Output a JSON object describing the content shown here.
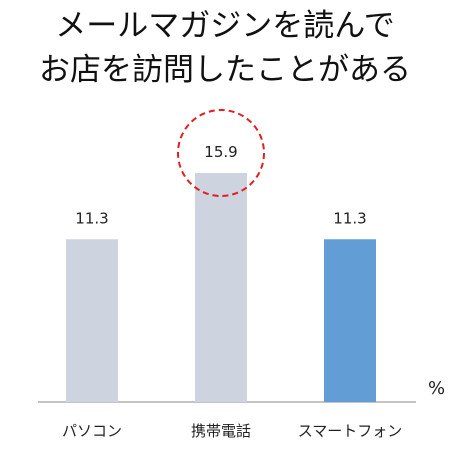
{
  "title_lines": [
    "メールマガジンを読んで",
    "お店を訪問したことがある"
  ],
  "unit": "%",
  "chart_data": {
    "type": "bar",
    "title": "メールマガジンを読んでお店を訪問したことがある",
    "categories": [
      "パソコン",
      "携帯電話",
      "スマートフォン"
    ],
    "values": [
      11.3,
      15.9,
      11.3
    ],
    "value_labels": [
      "11.3",
      "15.9",
      "11.3"
    ],
    "colors": [
      "#cdd3df",
      "#cdd3df",
      "#629dd5"
    ],
    "highlight_index": 1,
    "highlight_color": "#e02020",
    "ylim": [
      0,
      23.4
    ],
    "grid": false,
    "ylabel": "%"
  }
}
